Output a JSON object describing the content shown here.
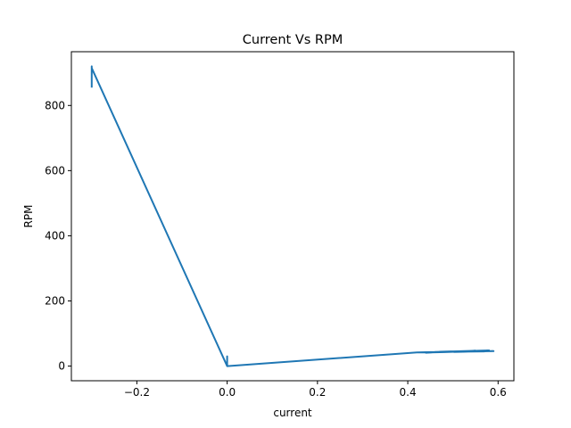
{
  "chart_data": {
    "type": "line",
    "title": "Current Vs RPM",
    "xlabel": "current",
    "ylabel": "RPM",
    "xlim": [
      -0.345,
      0.635
    ],
    "ylim": [
      -45,
      965
    ],
    "xticks": [
      -0.2,
      0.0,
      0.2,
      0.4,
      0.6
    ],
    "xtick_labels": [
      "−0.2",
      "0.0",
      "0.2",
      "0.4",
      "0.6"
    ],
    "yticks": [
      0,
      200,
      400,
      600,
      800
    ],
    "ytick_labels": [
      "0",
      "200",
      "400",
      "600",
      "800"
    ],
    "grid": false,
    "legend": "none",
    "series": [
      {
        "color": "#1f77b4",
        "x": [
          -0.3,
          -0.3,
          -0.3,
          -0.3,
          0.0,
          0.0,
          0.0,
          0.0,
          0.42,
          0.48,
          0.44,
          0.5,
          0.46,
          0.55,
          0.47,
          0.58,
          0.45,
          0.59,
          0.48,
          0.57,
          0.46,
          0.58
        ],
        "y": [
          855,
          920,
          870,
          915,
          0,
          30,
          5,
          0,
          42,
          44,
          41,
          45,
          43,
          47,
          44,
          48,
          42,
          46,
          44,
          45,
          43,
          46
        ]
      }
    ]
  }
}
